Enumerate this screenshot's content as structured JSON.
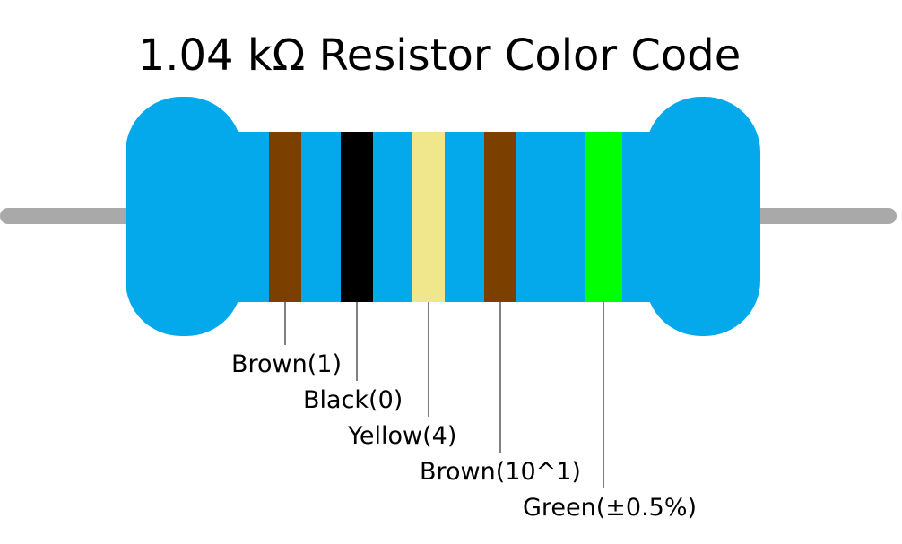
{
  "title": "1.04 kΩ Resistor Color Code",
  "bands": [
    {
      "label": "Brown(1)",
      "color": "#7b3f00"
    },
    {
      "label": "Black(0)",
      "color": "#000000"
    },
    {
      "label": "Yellow(4)",
      "color": "#f0e68c"
    },
    {
      "label": "Brown(10^1)",
      "color": "#7b3f00"
    },
    {
      "label": "Green(±0.5%)",
      "color": "#00ff00"
    }
  ]
}
